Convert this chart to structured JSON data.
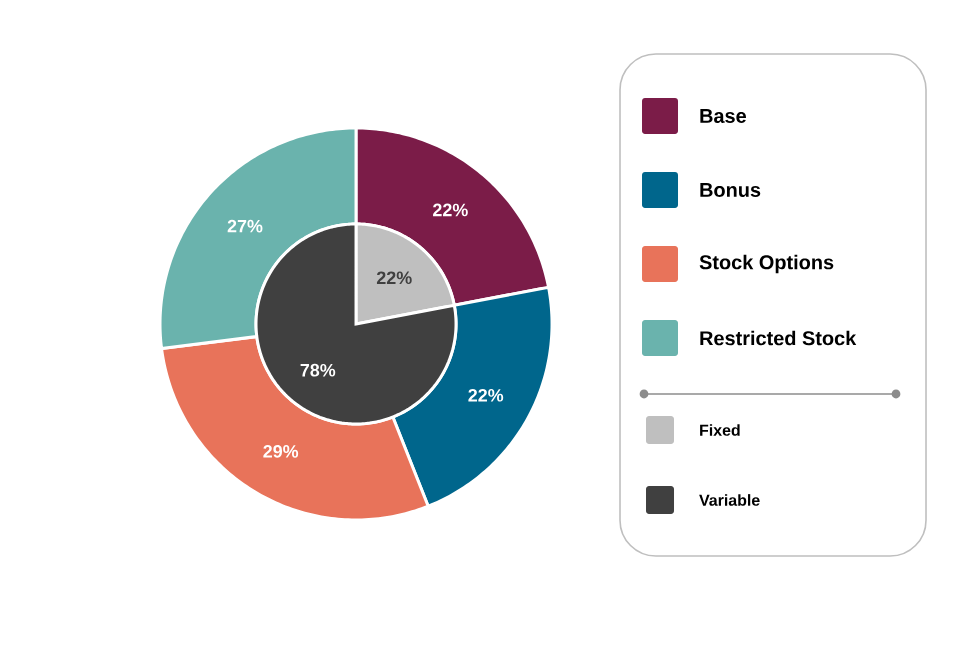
{
  "chart_data": [
    {
      "type": "donut",
      "categories": [
        "Base",
        "Bonus",
        "Stock Options",
        "Restricted Stock"
      ],
      "values": [
        22,
        22,
        29,
        27
      ],
      "value_labels": [
        "22%",
        "22%",
        "29%",
        "27%"
      ],
      "colors": [
        "#7b1c48",
        "#00668c",
        "#e8735a",
        "#6ab3ad"
      ],
      "legend": "right"
    },
    {
      "type": "pie",
      "categories": [
        "Fixed",
        "Variable"
      ],
      "values": [
        22,
        78
      ],
      "value_labels": [
        "22%",
        "78%"
      ],
      "colors": [
        "#bfbfbf",
        "#404040"
      ],
      "legend": "right"
    }
  ]
}
